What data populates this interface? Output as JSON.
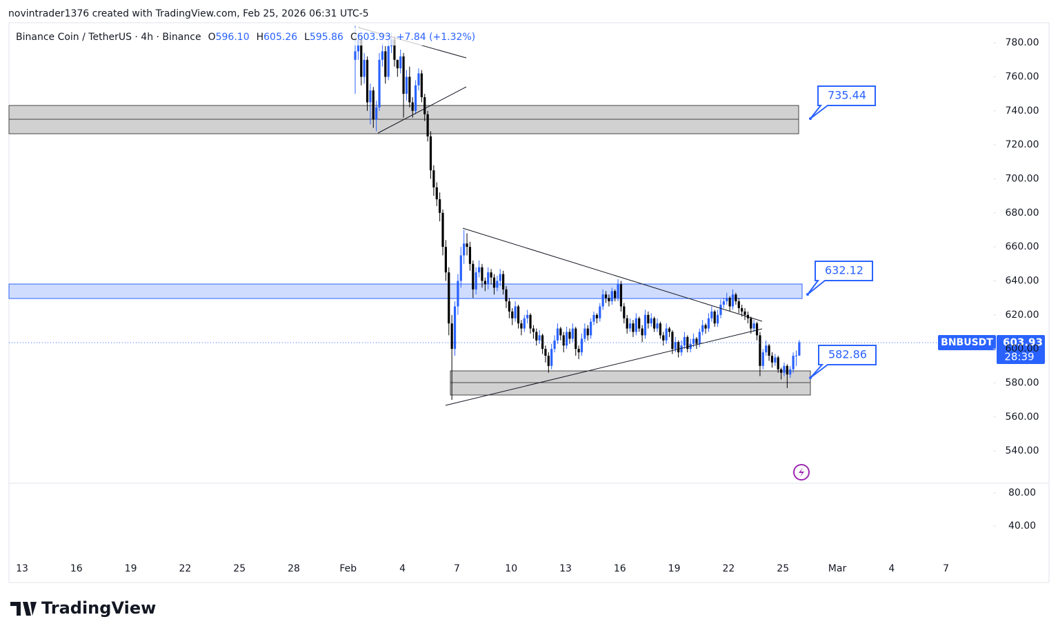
{
  "header": {
    "credit": "novintrader1376 created with TradingView.com, Feb 25, 2026 06:31 UTC-5"
  },
  "legend": {
    "symbol": "Binance Coin / TetherUS · 4h · Binance",
    "fields": [
      {
        "key": "O",
        "value": "596.10"
      },
      {
        "key": "H",
        "value": "605.26"
      },
      {
        "key": "L",
        "value": "595.86"
      },
      {
        "key": "C",
        "value": "603.93"
      }
    ],
    "change": "+7.84 (+1.32%)"
  },
  "callouts": [
    "735.44",
    "632.12",
    "582.86"
  ],
  "price_tag": {
    "symbol": "BNBUSDT",
    "price": "603.93",
    "countdown": "28:39"
  },
  "footer": {
    "brand": "TradingView"
  },
  "chart_data": {
    "type": "candlestick",
    "up_color": "#2962ff",
    "down_color": "#000000",
    "ylim": [
      521,
      791.8
    ],
    "yticks": [
      {
        "value": 780,
        "label": "780.00"
      },
      {
        "value": 760,
        "label": "760.00"
      },
      {
        "value": 740,
        "label": "740.00"
      },
      {
        "value": 720,
        "label": "720.00"
      },
      {
        "value": 700,
        "label": "700.00"
      },
      {
        "value": 680,
        "label": "680.00"
      },
      {
        "value": 660,
        "label": "660.00"
      },
      {
        "value": 640,
        "label": "640.00"
      },
      {
        "value": 620,
        "label": "620.00"
      },
      {
        "value": 600,
        "label": "600.00"
      },
      {
        "value": 580,
        "label": "580.00"
      },
      {
        "value": 560,
        "label": "560.00"
      },
      {
        "value": 540,
        "label": "540.00"
      }
    ],
    "y2lim": [
      0.8,
      91.7
    ],
    "y2ticks": [
      {
        "value": 80,
        "label": "80.00"
      },
      {
        "value": 40,
        "label": "40.00"
      }
    ],
    "xticks": [
      "13",
      "16",
      "19",
      "22",
      "25",
      "28",
      "Feb",
      "4",
      "7",
      "10",
      "13",
      "16",
      "19",
      "22",
      "25",
      "Mar",
      "4",
      "7"
    ],
    "candles": [
      [
        770,
        790,
        750,
        775
      ],
      [
        775,
        786,
        770,
        782
      ],
      [
        782,
        784,
        755,
        760
      ],
      [
        760,
        774,
        756,
        770
      ],
      [
        770,
        772,
        740,
        745
      ],
      [
        745,
        756,
        732,
        752
      ],
      [
        752,
        754,
        730,
        735
      ],
      [
        735,
        746,
        728,
        742
      ],
      [
        742,
        774,
        740,
        770
      ],
      [
        770,
        780,
        766,
        775
      ],
      [
        775,
        778,
        756,
        760
      ],
      [
        760,
        782,
        758,
        778
      ],
      [
        778,
        786,
        774,
        782
      ],
      [
        782,
        784,
        766,
        770
      ],
      [
        770,
        770,
        760,
        765
      ],
      [
        765,
        776,
        762,
        772
      ],
      [
        772,
        774,
        736,
        750
      ],
      [
        750,
        764,
        746,
        760
      ],
      [
        760,
        766,
        742,
        745
      ],
      [
        745,
        748,
        736,
        740
      ],
      [
        740,
        758,
        738,
        755
      ],
      [
        755,
        765,
        752,
        762
      ],
      [
        762,
        764,
        745,
        748
      ],
      [
        748,
        750,
        734,
        738
      ],
      [
        738,
        740,
        722,
        725
      ],
      [
        725,
        728,
        700,
        705
      ],
      [
        705,
        708,
        690,
        695
      ],
      [
        695,
        698,
        684,
        688
      ],
      [
        688,
        692,
        675,
        680
      ],
      [
        680,
        682,
        655,
        660
      ],
      [
        660,
        664,
        640,
        645
      ],
      [
        645,
        648,
        608,
        615
      ],
      [
        615,
        620,
        570,
        600
      ],
      [
        600,
        628,
        596,
        625
      ],
      [
        625,
        644,
        620,
        640
      ],
      [
        640,
        660,
        636,
        655
      ],
      [
        655,
        670,
        650,
        662
      ],
      [
        662,
        668,
        655,
        660
      ],
      [
        660,
        663,
        646,
        650
      ],
      [
        650,
        652,
        630,
        635
      ],
      [
        635,
        648,
        632,
        645
      ],
      [
        645,
        652,
        642,
        648
      ],
      [
        648,
        650,
        636,
        640
      ],
      [
        640,
        642,
        634,
        638
      ],
      [
        638,
        648,
        635,
        645
      ],
      [
        645,
        647,
        638,
        642
      ],
      [
        642,
        644,
        632,
        636
      ],
      [
        636,
        643,
        634,
        640
      ],
      [
        640,
        647,
        637,
        644
      ],
      [
        644,
        646,
        632,
        635
      ],
      [
        635,
        637,
        624,
        628
      ],
      [
        628,
        630,
        618,
        622
      ],
      [
        622,
        624,
        614,
        618
      ],
      [
        618,
        628,
        616,
        625
      ],
      [
        625,
        626,
        612,
        615
      ],
      [
        615,
        617,
        608,
        612
      ],
      [
        612,
        620,
        610,
        618
      ],
      [
        618,
        623,
        615,
        620
      ],
      [
        620,
        621,
        609,
        612
      ],
      [
        612,
        614,
        606,
        610
      ],
      [
        610,
        612,
        602,
        605
      ],
      [
        605,
        611,
        603,
        608
      ],
      [
        608,
        609,
        597,
        600
      ],
      [
        600,
        602,
        592,
        596
      ],
      [
        596,
        598,
        586,
        590
      ],
      [
        590,
        603,
        588,
        600
      ],
      [
        600,
        608,
        598,
        605
      ],
      [
        605,
        615,
        603,
        612
      ],
      [
        612,
        613,
        605,
        608
      ],
      [
        608,
        610,
        598,
        602
      ],
      [
        602,
        613,
        600,
        610
      ],
      [
        610,
        612,
        603,
        606
      ],
      [
        606,
        615,
        604,
        612
      ],
      [
        612,
        613,
        596,
        600
      ],
      [
        600,
        602,
        594,
        598
      ],
      [
        598,
        609,
        596,
        606
      ],
      [
        606,
        615,
        604,
        612
      ],
      [
        612,
        614,
        605,
        608
      ],
      [
        608,
        618,
        606,
        616
      ],
      [
        616,
        622,
        614,
        620
      ],
      [
        620,
        621,
        615,
        618
      ],
      [
        618,
        627,
        616,
        625
      ],
      [
        625,
        635,
        623,
        632
      ],
      [
        632,
        634,
        627,
        630
      ],
      [
        630,
        632,
        625,
        628
      ],
      [
        628,
        636,
        626,
        634
      ],
      [
        634,
        635,
        628,
        630
      ],
      [
        630,
        641,
        628,
        638
      ],
      [
        638,
        640,
        622,
        625
      ],
      [
        625,
        627,
        615,
        618
      ],
      [
        618,
        620,
        609,
        612
      ],
      [
        612,
        618,
        610,
        615
      ],
      [
        615,
        617,
        607,
        610
      ],
      [
        610,
        621,
        608,
        618
      ],
      [
        618,
        619,
        610,
        612
      ],
      [
        612,
        614,
        604,
        608
      ],
      [
        608,
        623,
        606,
        620
      ],
      [
        620,
        622,
        612,
        615
      ],
      [
        615,
        621,
        613,
        618
      ],
      [
        618,
        619,
        610,
        612
      ],
      [
        612,
        618,
        610,
        615
      ],
      [
        615,
        616,
        606,
        608
      ],
      [
        608,
        610,
        602,
        605
      ],
      [
        605,
        615,
        603,
        612
      ],
      [
        612,
        613,
        607,
        610
      ],
      [
        610,
        611,
        597,
        600
      ],
      [
        600,
        607,
        598,
        604
      ],
      [
        604,
        605,
        595,
        598
      ],
      [
        598,
        605,
        596,
        602
      ],
      [
        602,
        610,
        600,
        607
      ],
      [
        607,
        608,
        598,
        600
      ],
      [
        600,
        606,
        598,
        603
      ],
      [
        603,
        609,
        601,
        606
      ],
      [
        606,
        607,
        600,
        603
      ],
      [
        603,
        612,
        601,
        610
      ],
      [
        610,
        617,
        608,
        614
      ],
      [
        614,
        615,
        609,
        612
      ],
      [
        612,
        621,
        610,
        618
      ],
      [
        618,
        625,
        616,
        622
      ],
      [
        622,
        623,
        613,
        615
      ],
      [
        615,
        623,
        613,
        620
      ],
      [
        620,
        629,
        618,
        626
      ],
      [
        626,
        630,
        624,
        628
      ],
      [
        628,
        633,
        626,
        630
      ],
      [
        630,
        631,
        622,
        625
      ],
      [
        625,
        635,
        623,
        632
      ],
      [
        632,
        633,
        626,
        628
      ],
      [
        628,
        630,
        621,
        624
      ],
      [
        624,
        626,
        619,
        622
      ],
      [
        622,
        624,
        617,
        620
      ],
      [
        620,
        622,
        615,
        618
      ],
      [
        618,
        619,
        609,
        612
      ],
      [
        612,
        617,
        610,
        615
      ],
      [
        615,
        616,
        605,
        608
      ],
      [
        608,
        610,
        584,
        590
      ],
      [
        590,
        600,
        588,
        598
      ],
      [
        598,
        605,
        596,
        602
      ],
      [
        602,
        603,
        593,
        596
      ],
      [
        596,
        598,
        589,
        592
      ],
      [
        592,
        597,
        590,
        595
      ],
      [
        595,
        596,
        586,
        588
      ],
      [
        588,
        589,
        582,
        586
      ],
      [
        586,
        592,
        584,
        590
      ],
      [
        590,
        591,
        577,
        585
      ],
      [
        585,
        590,
        583,
        588
      ],
      [
        588,
        598,
        586,
        596
      ],
      [
        596,
        599,
        590,
        596.1
      ],
      [
        596.1,
        605.26,
        595.86,
        603.93
      ]
    ]
  }
}
